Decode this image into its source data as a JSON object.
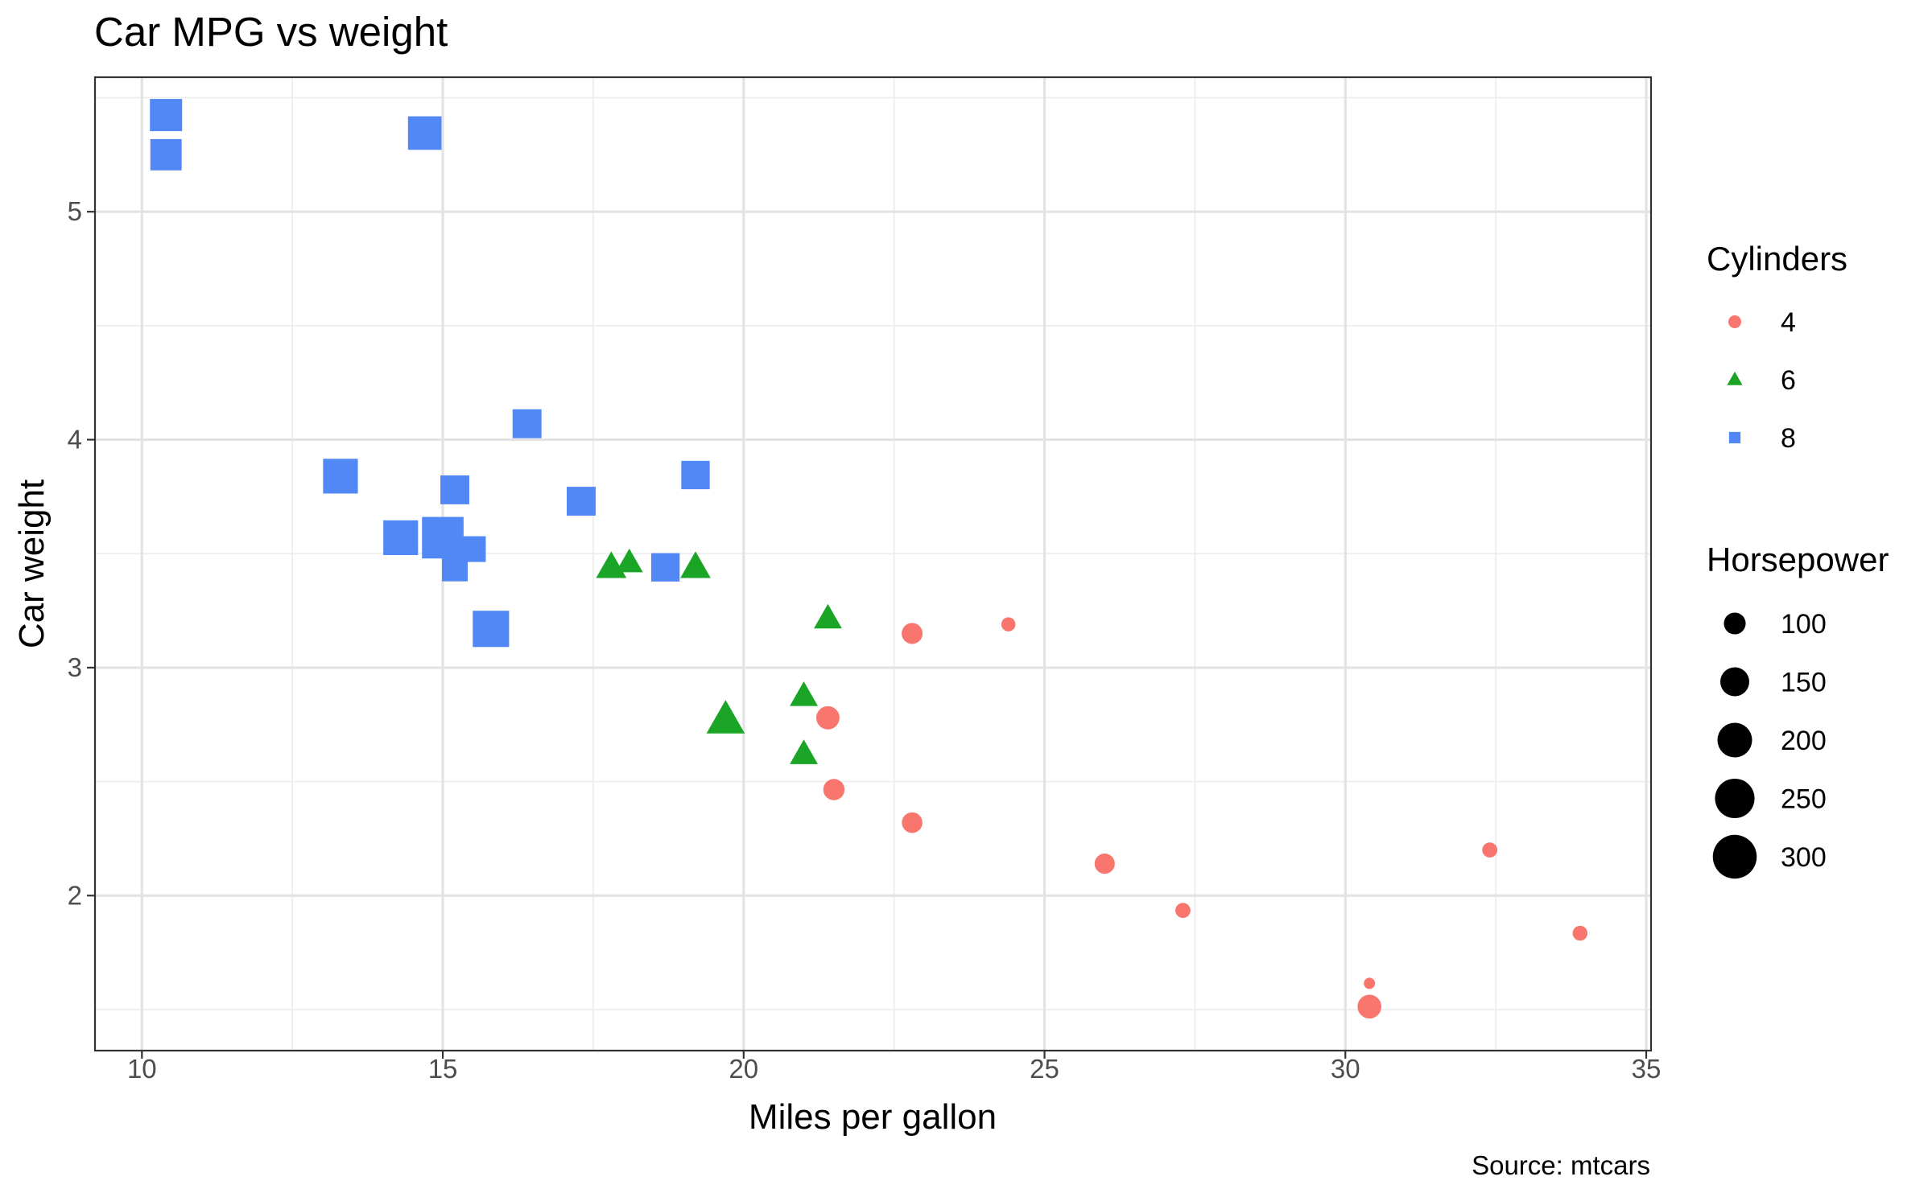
{
  "chart_data": {
    "type": "scatter",
    "title": "Car MPG vs weight",
    "xlabel": "Miles per gallon",
    "ylabel": "Car weight",
    "caption": "Source: mtcars",
    "xlim": [
      9.22,
      35.08
    ],
    "ylim": [
      1.32,
      5.59
    ],
    "x_ticks": [
      10,
      15,
      20,
      25,
      30,
      35
    ],
    "y_ticks": [
      2,
      3,
      4,
      5
    ],
    "x_minor": [
      12.5,
      17.5,
      22.5,
      27.5,
      32.5
    ],
    "y_minor": [
      1.5,
      2.5,
      3.5,
      4.5,
      5.5
    ],
    "grid": true,
    "legend_position": "right",
    "color_legend": {
      "title": "Cylinders",
      "entries": [
        {
          "label": "4",
          "shape": "circle",
          "color": "#F8766D"
        },
        {
          "label": "6",
          "shape": "triangle",
          "color": "#1AA527"
        },
        {
          "label": "8",
          "shape": "square",
          "color": "#5288F5"
        }
      ]
    },
    "size_legend": {
      "title": "Horsepower",
      "entries": [
        {
          "label": "100",
          "value": 100
        },
        {
          "label": "150",
          "value": 150
        },
        {
          "label": "200",
          "value": 200
        },
        {
          "label": "250",
          "value": 250
        },
        {
          "label": "300",
          "value": 300
        }
      ]
    },
    "series": [
      {
        "name": "4",
        "shape": "circle",
        "color": "#F8766D",
        "points": [
          {
            "x": 22.8,
            "y": 2.32,
            "hp": 93
          },
          {
            "x": 24.4,
            "y": 3.19,
            "hp": 62
          },
          {
            "x": 22.8,
            "y": 3.15,
            "hp": 95
          },
          {
            "x": 32.4,
            "y": 2.2,
            "hp": 66
          },
          {
            "x": 30.4,
            "y": 1.615,
            "hp": 52
          },
          {
            "x": 33.9,
            "y": 1.835,
            "hp": 65
          },
          {
            "x": 21.5,
            "y": 2.465,
            "hp": 97
          },
          {
            "x": 27.3,
            "y": 1.935,
            "hp": 66
          },
          {
            "x": 26.0,
            "y": 2.14,
            "hp": 91
          },
          {
            "x": 30.4,
            "y": 1.513,
            "hp": 113
          },
          {
            "x": 21.4,
            "y": 2.78,
            "hp": 109
          }
        ]
      },
      {
        "name": "6",
        "shape": "triangle",
        "color": "#1AA527",
        "points": [
          {
            "x": 21.0,
            "y": 2.62,
            "hp": 110
          },
          {
            "x": 21.0,
            "y": 2.875,
            "hp": 110
          },
          {
            "x": 21.4,
            "y": 3.215,
            "hp": 110
          },
          {
            "x": 18.1,
            "y": 3.46,
            "hp": 105
          },
          {
            "x": 19.2,
            "y": 3.44,
            "hp": 123
          },
          {
            "x": 17.8,
            "y": 3.44,
            "hp": 123
          },
          {
            "x": 19.7,
            "y": 2.77,
            "hp": 175
          }
        ]
      },
      {
        "name": "8",
        "shape": "square",
        "color": "#5288F5",
        "points": [
          {
            "x": 18.7,
            "y": 3.44,
            "hp": 175
          },
          {
            "x": 14.3,
            "y": 3.57,
            "hp": 245
          },
          {
            "x": 16.4,
            "y": 4.07,
            "hp": 180
          },
          {
            "x": 17.3,
            "y": 3.73,
            "hp": 180
          },
          {
            "x": 15.2,
            "y": 3.78,
            "hp": 180
          },
          {
            "x": 10.4,
            "y": 5.25,
            "hp": 205
          },
          {
            "x": 10.4,
            "y": 5.424,
            "hp": 215
          },
          {
            "x": 14.7,
            "y": 5.345,
            "hp": 230
          },
          {
            "x": 15.5,
            "y": 3.52,
            "hp": 150
          },
          {
            "x": 15.2,
            "y": 3.435,
            "hp": 150
          },
          {
            "x": 13.3,
            "y": 3.84,
            "hp": 245
          },
          {
            "x": 19.2,
            "y": 3.845,
            "hp": 175
          },
          {
            "x": 15.8,
            "y": 3.17,
            "hp": 264
          },
          {
            "x": 15.0,
            "y": 3.57,
            "hp": 335
          }
        ]
      }
    ]
  }
}
